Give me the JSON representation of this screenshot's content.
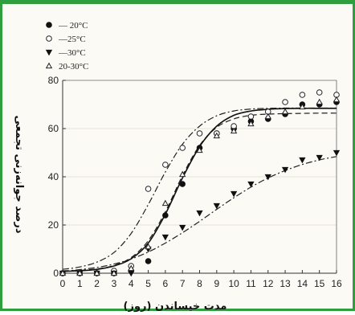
{
  "chart_data": {
    "type": "scatter",
    "xlabel": "مدت خیساندن (روز)",
    "ylabel": "درصد جوانه‌زنی تجمعی",
    "xlim": [
      0,
      16
    ],
    "ylim": [
      0,
      80
    ],
    "x_ticks": [
      0,
      1,
      2,
      3,
      4,
      5,
      6,
      7,
      8,
      9,
      10,
      11,
      12,
      13,
      14,
      15,
      16
    ],
    "y_ticks": [
      0,
      20,
      40,
      60,
      80
    ],
    "legend_position": "top-left",
    "x": [
      0,
      1,
      2,
      3,
      4,
      5,
      6,
      7,
      8,
      9,
      10,
      11,
      12,
      13,
      14,
      15,
      16
    ],
    "series": [
      {
        "name": "20°C",
        "legend_label": "— 20°C",
        "marker": "filled-circle",
        "line": "dash",
        "values": [
          0,
          0,
          0,
          0,
          1,
          5,
          24,
          37,
          52,
          58,
          60,
          63,
          64,
          66,
          70,
          70,
          71
        ],
        "fit": [
          1.0,
          1.2,
          1.8,
          3.2,
          6.5,
          13.5,
          25.5,
          40.5,
          53.0,
          60.5,
          64.0,
          65.5,
          66.0,
          66.2,
          66.3,
          66.4,
          66.4
        ]
      },
      {
        "name": "25°C",
        "legend_label": "—25°C",
        "marker": "open-circle",
        "line": "dashdot",
        "values": [
          0,
          0,
          0,
          1,
          3,
          35,
          45,
          52,
          58,
          58,
          61,
          65,
          67,
          71,
          74,
          75,
          74
        ],
        "fit": [
          1.6,
          2.6,
          4.6,
          8.6,
          16.5,
          28.5,
          42.0,
          53.5,
          61.0,
          65.3,
          67.3,
          68.1,
          68.4,
          68.5,
          68.5,
          68.5,
          68.5
        ]
      },
      {
        "name": "30°C",
        "legend_label": "—30°C",
        "marker": "filled-triangle-down",
        "line": "dashdot",
        "values": [
          0,
          0,
          0,
          0,
          0,
          10,
          15,
          19,
          25,
          28,
          33,
          37,
          40,
          43,
          47,
          48,
          50
        ],
        "fit": [
          0.8,
          1.5,
          2.4,
          3.8,
          5.9,
          8.8,
          12.5,
          16.8,
          21.5,
          26.5,
          31.3,
          35.7,
          39.5,
          42.6,
          45.1,
          47.0,
          48.4
        ]
      },
      {
        "name": "20-30°C",
        "legend_label": "20-30°C",
        "marker": "open-triangle-up",
        "line": "solid",
        "values": [
          0,
          0,
          0,
          0,
          2,
          11,
          29,
          41,
          51,
          57,
          59,
          62,
          65,
          67,
          69,
          71,
          72
        ],
        "fit": [
          0.8,
          1.0,
          1.6,
          3.0,
          6.0,
          12.5,
          24.5,
          39.5,
          52.5,
          61.0,
          65.5,
          67.3,
          68.0,
          68.3,
          68.4,
          68.4,
          68.4
        ]
      }
    ]
  }
}
